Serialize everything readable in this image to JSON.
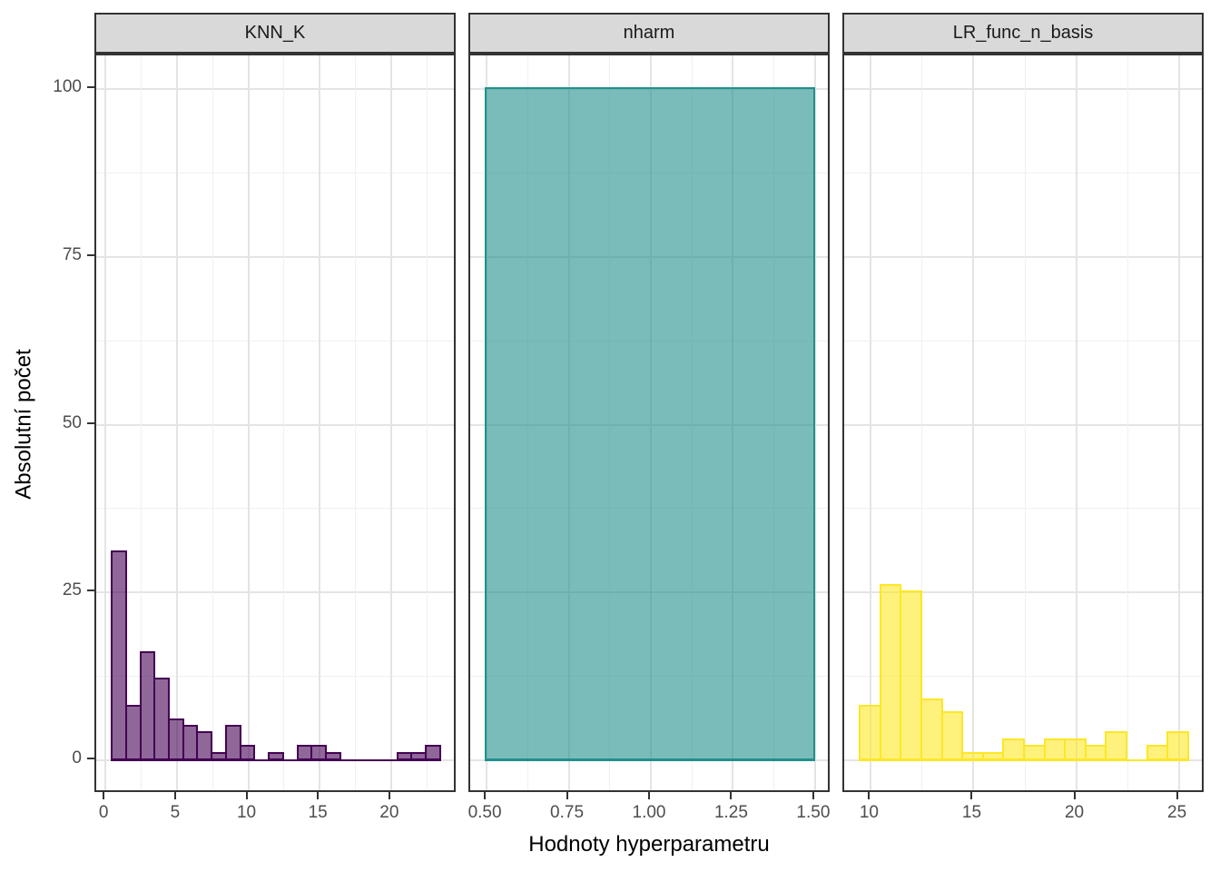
{
  "chart_data": {
    "type": "histogram",
    "facets": true,
    "title": "",
    "xlabel": "Hodnoty hyperparametru",
    "ylabel": "Absolutní počet",
    "ylim": [
      0,
      105
    ],
    "yticks": [
      0,
      25,
      50,
      75,
      100
    ],
    "y_minor": [
      12.5,
      37.5,
      62.5,
      87.5
    ],
    "grid": true,
    "legend": "none",
    "strip_background": "#d9d9d9",
    "panel_border_color": "#333333",
    "tick_label_color": "#4d4d4d",
    "panels": [
      {
        "label": "KNN_K",
        "fill": "rgba(68,1,84,0.6)",
        "stroke": "#440154",
        "binwidth": 1,
        "xdomain": [
          -0.65,
          24.65
        ],
        "xticks": [
          {
            "v": 0,
            "label": "0"
          },
          {
            "v": 5,
            "label": "5"
          },
          {
            "v": 10,
            "label": "10"
          },
          {
            "v": 15,
            "label": "15"
          },
          {
            "v": 20,
            "label": "20"
          }
        ],
        "x_minor": [
          2.5,
          7.5,
          12.5,
          17.5,
          22.5
        ],
        "bins": [
          {
            "x": 1,
            "count": 31
          },
          {
            "x": 2,
            "count": 8
          },
          {
            "x": 3,
            "count": 16
          },
          {
            "x": 4,
            "count": 12
          },
          {
            "x": 5,
            "count": 6
          },
          {
            "x": 6,
            "count": 5
          },
          {
            "x": 7,
            "count": 4
          },
          {
            "x": 8,
            "count": 1
          },
          {
            "x": 9,
            "count": 5
          },
          {
            "x": 10,
            "count": 2
          },
          {
            "x": 11,
            "count": 0
          },
          {
            "x": 12,
            "count": 1
          },
          {
            "x": 13,
            "count": 0
          },
          {
            "x": 14,
            "count": 2
          },
          {
            "x": 15,
            "count": 2
          },
          {
            "x": 16,
            "count": 1
          },
          {
            "x": 17,
            "count": 0
          },
          {
            "x": 18,
            "count": 0
          },
          {
            "x": 19,
            "count": 0
          },
          {
            "x": 20,
            "count": 0
          },
          {
            "x": 21,
            "count": 1
          },
          {
            "x": 22,
            "count": 1
          },
          {
            "x": 23,
            "count": 2
          }
        ]
      },
      {
        "label": "nharm",
        "fill": "rgba(33,144,140,0.6)",
        "stroke": "#21908c",
        "binwidth": 1,
        "xdomain": [
          0.45,
          1.55
        ],
        "xticks": [
          {
            "v": 0.5,
            "label": "0.50"
          },
          {
            "v": 0.75,
            "label": "0.75"
          },
          {
            "v": 1.0,
            "label": "1.00"
          },
          {
            "v": 1.25,
            "label": "1.25"
          },
          {
            "v": 1.5,
            "label": "1.50"
          }
        ],
        "x_minor": [
          0.625,
          0.875,
          1.125,
          1.375
        ],
        "bins": [
          {
            "x": 1,
            "count": 100
          }
        ]
      },
      {
        "label": "LR_func_n_basis",
        "fill": "rgba(253,231,37,0.6)",
        "stroke": "#fde725",
        "binwidth": 1,
        "xdomain": [
          8.7,
          26.3
        ],
        "xticks": [
          {
            "v": 10,
            "label": "10"
          },
          {
            "v": 15,
            "label": "15"
          },
          {
            "v": 20,
            "label": "20"
          },
          {
            "v": 25,
            "label": "25"
          }
        ],
        "x_minor": [
          12.5,
          17.5,
          22.5
        ],
        "bins": [
          {
            "x": 10,
            "count": 8
          },
          {
            "x": 11,
            "count": 26
          },
          {
            "x": 12,
            "count": 25
          },
          {
            "x": 13,
            "count": 9
          },
          {
            "x": 14,
            "count": 7
          },
          {
            "x": 15,
            "count": 1
          },
          {
            "x": 16,
            "count": 1
          },
          {
            "x": 17,
            "count": 3
          },
          {
            "x": 18,
            "count": 2
          },
          {
            "x": 19,
            "count": 3
          },
          {
            "x": 20,
            "count": 3
          },
          {
            "x": 21,
            "count": 2
          },
          {
            "x": 22,
            "count": 4
          },
          {
            "x": 23,
            "count": 0
          },
          {
            "x": 24,
            "count": 2
          },
          {
            "x": 25,
            "count": 4
          }
        ]
      }
    ]
  }
}
